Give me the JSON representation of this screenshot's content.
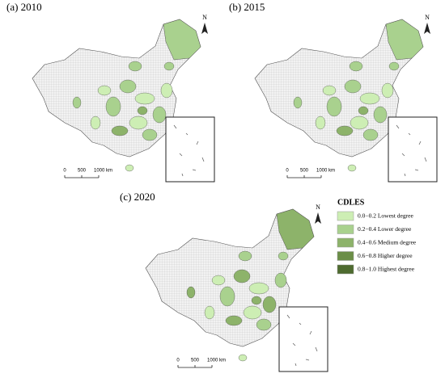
{
  "panels": [
    {
      "label": "(a) 2010",
      "north": "N",
      "scale": [
        "0",
        "500",
        "1000 km"
      ]
    },
    {
      "label": "(b) 2015",
      "north": "N",
      "scale": [
        "0",
        "500",
        "1000 km"
      ]
    },
    {
      "label": "(c) 2020",
      "north": "N",
      "scale": [
        "0",
        "500",
        "1000 km"
      ]
    }
  ],
  "legend": {
    "title": "CDLES",
    "items": [
      {
        "label": "0.0−0.2 Lowest degree",
        "color": "#cdeeb4"
      },
      {
        "label": "0.2−0.4 Lower degree",
        "color": "#a9d18e"
      },
      {
        "label": "0.4−0.6 Medium degree",
        "color": "#8db36a"
      },
      {
        "label": "0.6−0.8 Higher degree",
        "color": "#6b8e47"
      },
      {
        "label": "0.8−1.0 Highest degree",
        "color": "#4e6b2f"
      }
    ]
  }
}
